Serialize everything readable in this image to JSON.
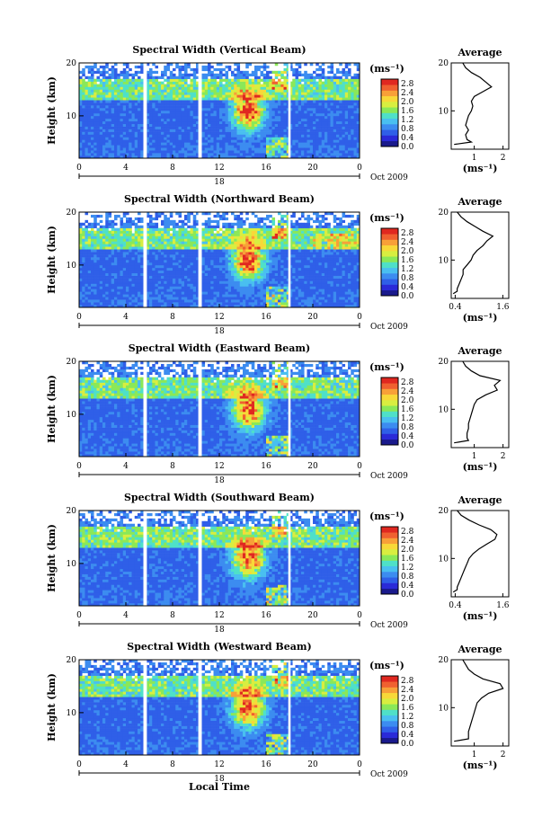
{
  "chart_data": {
    "type": "heatmap",
    "panels": [
      {
        "title": "Spectral Width (Vertical Beam)",
        "avg_xticks": [
          "1",
          "2"
        ],
        "avg_xrange": [
          0.2,
          2.2
        ],
        "avg_profile": [
          [
            0.3,
            3
          ],
          [
            0.9,
            3.5
          ],
          [
            0.75,
            4
          ],
          [
            0.7,
            5
          ],
          [
            0.8,
            6
          ],
          [
            0.7,
            7
          ],
          [
            0.75,
            8
          ],
          [
            0.8,
            9
          ],
          [
            0.9,
            10
          ],
          [
            0.95,
            11
          ],
          [
            0.9,
            12
          ],
          [
            1.0,
            13
          ],
          [
            1.3,
            14
          ],
          [
            1.6,
            15
          ],
          [
            1.4,
            16
          ],
          [
            1.2,
            17
          ],
          [
            0.9,
            18
          ],
          [
            0.7,
            19
          ],
          [
            0.6,
            20
          ]
        ]
      },
      {
        "title": "Spectral Width (Northward Beam)",
        "avg_xticks": [
          "0.4",
          "1.6"
        ],
        "avg_xrange": [
          0.3,
          1.75
        ],
        "avg_profile": [
          [
            0.35,
            3
          ],
          [
            0.45,
            3.5
          ],
          [
            0.45,
            4
          ],
          [
            0.5,
            5
          ],
          [
            0.55,
            6
          ],
          [
            0.6,
            7
          ],
          [
            0.6,
            8
          ],
          [
            0.7,
            9
          ],
          [
            0.8,
            10
          ],
          [
            0.85,
            11
          ],
          [
            0.95,
            12
          ],
          [
            1.1,
            13
          ],
          [
            1.2,
            14
          ],
          [
            1.35,
            15
          ],
          [
            1.1,
            16
          ],
          [
            0.9,
            17
          ],
          [
            0.7,
            18
          ],
          [
            0.55,
            19
          ],
          [
            0.45,
            20
          ]
        ]
      },
      {
        "title": "Spectral Width (Eastward Beam)",
        "avg_xticks": [
          "1",
          "2"
        ],
        "avg_xrange": [
          0.2,
          2.2
        ],
        "avg_profile": [
          [
            0.3,
            3
          ],
          [
            0.8,
            3.5
          ],
          [
            0.75,
            4
          ],
          [
            0.75,
            5
          ],
          [
            0.8,
            6
          ],
          [
            0.8,
            7
          ],
          [
            0.85,
            8
          ],
          [
            0.9,
            9
          ],
          [
            0.95,
            10
          ],
          [
            1.0,
            11
          ],
          [
            1.1,
            12
          ],
          [
            1.4,
            13
          ],
          [
            1.8,
            14
          ],
          [
            1.7,
            15
          ],
          [
            1.9,
            16
          ],
          [
            1.2,
            17
          ],
          [
            0.9,
            18
          ],
          [
            0.7,
            19
          ],
          [
            0.6,
            20
          ]
        ]
      },
      {
        "title": "Spectral Width (Southward Beam)",
        "avg_xticks": [
          "0.4",
          "1.6"
        ],
        "avg_xrange": [
          0.3,
          1.75
        ],
        "avg_profile": [
          [
            0.35,
            3
          ],
          [
            0.45,
            3.5
          ],
          [
            0.45,
            4
          ],
          [
            0.5,
            5
          ],
          [
            0.55,
            6
          ],
          [
            0.6,
            7
          ],
          [
            0.65,
            8
          ],
          [
            0.7,
            9
          ],
          [
            0.75,
            10
          ],
          [
            0.85,
            11
          ],
          [
            1.0,
            12
          ],
          [
            1.2,
            13
          ],
          [
            1.4,
            14
          ],
          [
            1.45,
            15
          ],
          [
            1.3,
            16
          ],
          [
            1.0,
            17
          ],
          [
            0.75,
            18
          ],
          [
            0.55,
            19
          ],
          [
            0.45,
            20
          ]
        ]
      },
      {
        "title": "Spectral Width (Westward Beam)",
        "avg_xticks": [
          "1",
          "2"
        ],
        "avg_xrange": [
          0.2,
          2.2
        ],
        "avg_profile": [
          [
            0.3,
            3
          ],
          [
            0.8,
            3.5
          ],
          [
            0.8,
            4
          ],
          [
            0.8,
            5
          ],
          [
            0.85,
            6
          ],
          [
            0.9,
            7
          ],
          [
            0.95,
            8
          ],
          [
            1.0,
            9
          ],
          [
            1.05,
            10
          ],
          [
            1.1,
            11
          ],
          [
            1.25,
            12
          ],
          [
            1.5,
            13
          ],
          [
            2.0,
            14
          ],
          [
            1.9,
            15
          ],
          [
            1.3,
            16
          ],
          [
            1.0,
            17
          ],
          [
            0.8,
            18
          ],
          [
            0.7,
            19
          ],
          [
            0.6,
            20
          ]
        ]
      }
    ],
    "ylabel": "Height (km)",
    "yticks": [
      "20",
      "10"
    ],
    "y_range": [
      2,
      20
    ],
    "xticks": [
      "0",
      "4",
      "8",
      "12",
      "16",
      "20",
      "0"
    ],
    "x_range": [
      0,
      24
    ],
    "date_day": "18",
    "date_label": "Oct 2009",
    "xlabel": "Local Time",
    "data_gaps_hours": [
      [
        5.5,
        5.8
      ],
      [
        10.2,
        10.4
      ],
      [
        17.9,
        18.1
      ]
    ],
    "colorbar_unit": "(ms⁻¹)",
    "colorbar_ticks": [
      "2.8",
      "2.4",
      "2.0",
      "1.6",
      "1.2",
      "0.8",
      "0.4",
      "0.0"
    ],
    "colorbar_range": [
      0,
      3.0
    ],
    "avg_title": "Average",
    "avg_xlabel": "(ms⁻¹)",
    "colors": [
      "#1a1a8c",
      "#2a2ad8",
      "#2f5fe8",
      "#3c8cf0",
      "#49bff0",
      "#4fe0c8",
      "#8ae858",
      "#d8ee40",
      "#f8d838",
      "#f8a038",
      "#f06030",
      "#e02820"
    ]
  }
}
